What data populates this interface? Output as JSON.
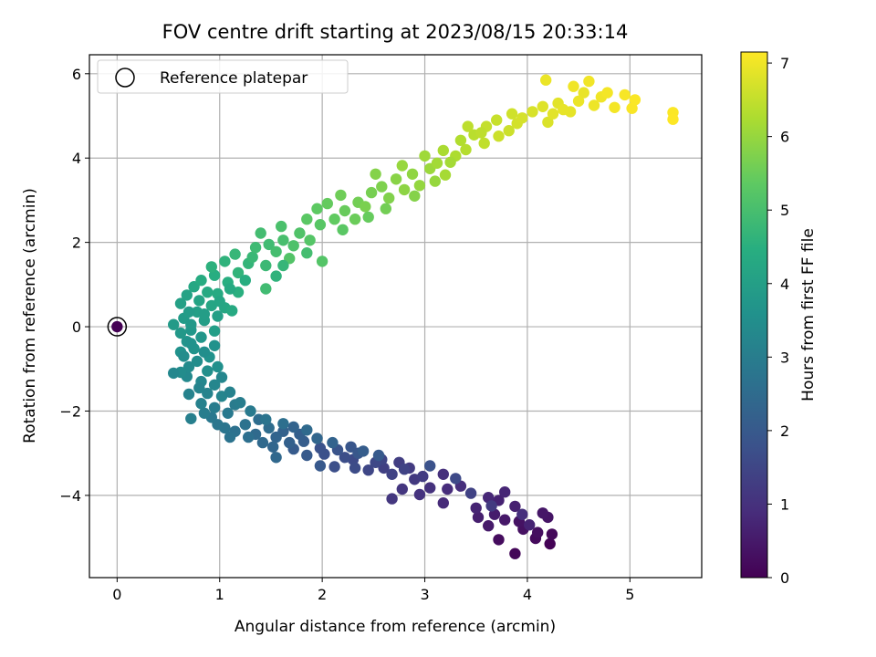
{
  "chart_data": {
    "type": "scatter",
    "title": "FOV centre drift starting at 2023/08/15 20:33:14",
    "xlabel": "Angular distance from reference (arcmin)",
    "ylabel": "Rotation from reference (arcmin)",
    "xlim": [
      -0.27,
      5.7
    ],
    "ylim": [
      -5.95,
      6.45
    ],
    "xticks": [
      0,
      1,
      2,
      3,
      4,
      5
    ],
    "yticks": [
      -4,
      -2,
      0,
      2,
      4,
      6
    ],
    "grid": true,
    "colormap": "viridis",
    "colorbar": {
      "label": "Hours from first FF file",
      "range": [
        0,
        7.15
      ],
      "ticks": [
        0,
        1,
        2,
        3,
        4,
        5,
        6,
        7
      ]
    },
    "legend": {
      "placement": "top-left",
      "entries": [
        "Reference platepar"
      ]
    },
    "reference_point": {
      "x": 0,
      "y": 0,
      "c": 0
    },
    "points": [
      [
        4.22,
        -5.15,
        0.05
      ],
      [
        3.88,
        -5.38,
        0.1
      ],
      [
        4.24,
        -4.92,
        0.14
      ],
      [
        4.08,
        -5.02,
        0.18
      ],
      [
        3.72,
        -5.05,
        0.22
      ],
      [
        4.1,
        -4.88,
        0.26
      ],
      [
        3.96,
        -4.8,
        0.3
      ],
      [
        3.92,
        -4.62,
        0.35
      ],
      [
        4.2,
        -4.52,
        0.39
      ],
      [
        4.15,
        -4.42,
        0.43
      ],
      [
        3.78,
        -4.58,
        0.47
      ],
      [
        3.62,
        -4.72,
        0.51
      ],
      [
        3.68,
        -4.45,
        0.55
      ],
      [
        3.52,
        -4.52,
        0.6
      ],
      [
        3.88,
        -4.26,
        0.64
      ],
      [
        3.72,
        -4.12,
        0.68
      ],
      [
        3.5,
        -4.3,
        0.72
      ],
      [
        3.78,
        -3.92,
        0.76
      ],
      [
        3.62,
        -4.05,
        0.8
      ],
      [
        3.18,
        -4.18,
        0.85
      ],
      [
        3.22,
        -3.85,
        0.89
      ],
      [
        3.35,
        -3.78,
        0.93
      ],
      [
        3.18,
        -3.5,
        0.97
      ],
      [
        3.05,
        -3.82,
        1.01
      ],
      [
        2.95,
        -3.98,
        1.05
      ],
      [
        2.78,
        -3.85,
        1.1
      ],
      [
        2.68,
        -4.08,
        1.14
      ],
      [
        2.9,
        -3.62,
        1.18
      ],
      [
        2.85,
        -3.35,
        1.22
      ],
      [
        2.98,
        -3.55,
        1.26
      ],
      [
        2.75,
        -3.22,
        1.3
      ],
      [
        2.6,
        -3.35,
        1.35
      ],
      [
        2.68,
        -3.5,
        1.39
      ],
      [
        2.8,
        -3.38,
        1.43
      ],
      [
        2.58,
        -3.15,
        1.47
      ],
      [
        2.45,
        -3.4,
        1.51
      ],
      [
        2.52,
        -3.22,
        1.55
      ],
      [
        2.3,
        -3.15,
        1.6
      ],
      [
        2.32,
        -3.35,
        1.64
      ],
      [
        2.22,
        -3.1,
        1.68
      ],
      [
        2.12,
        -3.32,
        1.72
      ],
      [
        2.02,
        -3.02,
        1.76
      ],
      [
        1.98,
        -2.88,
        1.8
      ],
      [
        2.15,
        -2.92,
        1.85
      ],
      [
        2.28,
        -2.85,
        1.89
      ],
      [
        2.35,
        -3.0,
        1.93
      ],
      [
        1.98,
        -3.3,
        1.97
      ],
      [
        1.85,
        -3.05,
        2.01
      ],
      [
        1.72,
        -2.9,
        2.05
      ],
      [
        1.82,
        -2.72,
        2.1
      ],
      [
        1.78,
        -2.55,
        2.14
      ],
      [
        1.68,
        -2.75,
        2.18
      ],
      [
        1.62,
        -2.48,
        2.22
      ],
      [
        1.72,
        -2.38,
        2.26
      ],
      [
        1.55,
        -2.62,
        2.3
      ],
      [
        1.52,
        -2.85,
        2.35
      ],
      [
        1.55,
        -3.1,
        2.39
      ],
      [
        1.42,
        -2.75,
        2.43
      ],
      [
        1.35,
        -2.55,
        2.47
      ],
      [
        1.48,
        -2.4,
        2.51
      ],
      [
        1.38,
        -2.2,
        2.55
      ],
      [
        1.28,
        -2.62,
        2.6
      ],
      [
        1.15,
        -2.48,
        2.64
      ],
      [
        1.25,
        -2.32,
        2.68
      ],
      [
        1.1,
        -2.62,
        2.72
      ],
      [
        1.05,
        -2.4,
        2.76
      ],
      [
        0.98,
        -2.32,
        2.8
      ],
      [
        0.92,
        -2.15,
        2.85
      ],
      [
        1.08,
        -2.05,
        2.89
      ],
      [
        1.15,
        -1.85,
        2.93
      ],
      [
        0.95,
        -1.92,
        2.97
      ],
      [
        0.85,
        -2.05,
        3.01
      ],
      [
        0.72,
        -2.18,
        3.05
      ],
      [
        0.82,
        -1.82,
        3.1
      ],
      [
        0.7,
        -1.6,
        3.14
      ],
      [
        0.88,
        -1.58,
        3.18
      ],
      [
        1.02,
        -1.65,
        3.22
      ],
      [
        0.95,
        -1.38,
        3.26
      ],
      [
        0.82,
        -1.3,
        3.3
      ],
      [
        0.68,
        -1.18,
        3.35
      ],
      [
        0.7,
        -0.95,
        3.39
      ],
      [
        0.62,
        -1.08,
        3.43
      ],
      [
        0.78,
        -0.82,
        3.47
      ],
      [
        0.88,
        -1.05,
        3.51
      ],
      [
        0.98,
        -0.95,
        3.55
      ],
      [
        0.9,
        -0.72,
        3.6
      ],
      [
        0.75,
        -0.52,
        3.64
      ],
      [
        0.68,
        -0.35,
        3.68
      ],
      [
        0.82,
        -0.25,
        3.72
      ],
      [
        0.72,
        -0.08,
        3.76
      ],
      [
        0.62,
        -0.15,
        3.8
      ],
      [
        0.55,
        0.05,
        3.85
      ],
      [
        0.65,
        0.2,
        3.89
      ],
      [
        0.85,
        0.15,
        3.93
      ],
      [
        0.95,
        -0.1,
        3.97
      ],
      [
        0.78,
        0.35,
        4.01
      ],
      [
        0.62,
        0.55,
        4.05
      ],
      [
        0.68,
        0.75,
        4.1
      ],
      [
        0.8,
        0.62,
        4.14
      ],
      [
        0.92,
        0.5,
        4.18
      ],
      [
        1.05,
        0.45,
        4.22
      ],
      [
        0.75,
        0.95,
        4.26
      ],
      [
        0.88,
        0.82,
        4.3
      ],
      [
        0.98,
        0.78,
        4.35
      ],
      [
        0.82,
        1.1,
        4.39
      ],
      [
        0.95,
        1.22,
        4.43
      ],
      [
        1.08,
        1.05,
        4.47
      ],
      [
        1.18,
        0.82,
        4.51
      ],
      [
        0.92,
        1.42,
        4.55
      ],
      [
        1.05,
        1.55,
        4.6
      ],
      [
        1.18,
        1.28,
        4.64
      ],
      [
        1.28,
        1.5,
        4.68
      ],
      [
        1.15,
        1.72,
        4.72
      ],
      [
        1.32,
        1.65,
        4.76
      ],
      [
        1.45,
        1.45,
        4.8
      ],
      [
        1.35,
        1.88,
        4.85
      ],
      [
        1.48,
        1.95,
        4.89
      ],
      [
        1.4,
        2.22,
        4.93
      ],
      [
        1.55,
        1.78,
        4.97
      ],
      [
        1.62,
        2.05,
        5.01
      ],
      [
        1.6,
        2.38,
        5.05
      ],
      [
        1.72,
        1.92,
        5.1
      ],
      [
        1.78,
        2.22,
        5.14
      ],
      [
        1.68,
        1.62,
        5.18
      ],
      [
        1.88,
        2.05,
        5.22
      ],
      [
        1.98,
        2.42,
        5.26
      ],
      [
        1.85,
        2.55,
        5.3
      ],
      [
        1.95,
        2.8,
        5.35
      ],
      [
        2.12,
        2.55,
        5.39
      ],
      [
        2.05,
        2.92,
        5.43
      ],
      [
        2.22,
        2.75,
        5.47
      ],
      [
        2.32,
        2.55,
        5.51
      ],
      [
        2.18,
        3.12,
        5.55
      ],
      [
        2.35,
        2.95,
        5.6
      ],
      [
        2.48,
        3.18,
        5.64
      ],
      [
        2.42,
        2.85,
        5.68
      ],
      [
        2.58,
        3.32,
        5.72
      ],
      [
        2.65,
        3.05,
        5.76
      ],
      [
        2.52,
        3.62,
        5.8
      ],
      [
        2.72,
        3.5,
        5.85
      ],
      [
        2.8,
        3.25,
        5.89
      ],
      [
        2.88,
        3.62,
        5.93
      ],
      [
        2.95,
        3.35,
        5.97
      ],
      [
        2.78,
        3.82,
        6.01
      ],
      [
        3.05,
        3.75,
        6.05
      ],
      [
        3.0,
        4.05,
        6.1
      ],
      [
        3.12,
        3.88,
        6.14
      ],
      [
        3.2,
        3.6,
        6.18
      ],
      [
        3.18,
        4.18,
        6.22
      ],
      [
        3.3,
        4.05,
        6.26
      ],
      [
        3.35,
        4.42,
        6.3
      ],
      [
        3.4,
        4.2,
        6.35
      ],
      [
        3.48,
        4.55,
        6.39
      ],
      [
        3.42,
        4.75,
        6.43
      ],
      [
        3.58,
        4.35,
        6.47
      ],
      [
        3.6,
        4.75,
        6.51
      ],
      [
        3.7,
        4.9,
        6.55
      ],
      [
        3.72,
        4.52,
        6.6
      ],
      [
        3.85,
        5.05,
        6.64
      ],
      [
        3.9,
        4.82,
        6.68
      ],
      [
        4.05,
        5.1,
        6.72
      ],
      [
        4.2,
        4.85,
        6.76
      ],
      [
        4.15,
        5.22,
        6.8
      ],
      [
        4.3,
        5.3,
        6.85
      ],
      [
        4.42,
        5.1,
        6.89
      ],
      [
        4.55,
        5.55,
        6.93
      ],
      [
        4.65,
        5.25,
        6.97
      ],
      [
        4.72,
        5.45,
        7.01
      ],
      [
        4.85,
        5.2,
        7.05
      ],
      [
        4.95,
        5.5,
        7.08
      ],
      [
        5.02,
        5.18,
        7.1
      ],
      [
        5.05,
        5.38,
        7.12
      ],
      [
        5.42,
        5.08,
        7.13
      ],
      [
        5.42,
        4.92,
        7.15
      ],
      [
        4.45,
        5.7,
        7.0
      ],
      [
        4.6,
        5.82,
        7.02
      ],
      [
        4.18,
        5.85,
        6.95
      ],
      [
        4.35,
        5.15,
        6.9
      ],
      [
        2.0,
        1.55,
        5.2
      ],
      [
        1.45,
        0.9,
        4.9
      ],
      [
        1.12,
        0.38,
        4.3
      ],
      [
        0.7,
        0.35,
        3.9
      ],
      [
        0.62,
        -0.6,
        3.6
      ],
      [
        0.72,
        -0.4,
        3.6
      ],
      [
        0.65,
        -0.7,
        3.45
      ],
      [
        0.55,
        -1.1,
        3.3
      ],
      [
        0.8,
        -1.45,
        3.2
      ],
      [
        0.85,
        -0.6,
        3.5
      ],
      [
        0.95,
        -0.45,
        3.6
      ],
      [
        0.72,
        0.05,
        3.8
      ],
      [
        0.85,
        0.3,
        3.95
      ],
      [
        0.98,
        0.25,
        4.0
      ],
      [
        1.0,
        0.6,
        4.2
      ],
      [
        1.1,
        0.9,
        4.3
      ],
      [
        1.25,
        1.1,
        4.45
      ],
      [
        1.55,
        1.2,
        4.6
      ],
      [
        1.62,
        1.45,
        4.7
      ],
      [
        1.85,
        1.75,
        4.95
      ],
      [
        2.2,
        2.3,
        5.3
      ],
      [
        2.45,
        2.6,
        5.45
      ],
      [
        2.62,
        2.8,
        5.6
      ],
      [
        2.9,
        3.1,
        5.8
      ],
      [
        3.1,
        3.45,
        6.0
      ],
      [
        3.25,
        3.9,
        6.15
      ],
      [
        3.55,
        4.6,
        6.45
      ],
      [
        3.82,
        4.65,
        6.6
      ],
      [
        3.95,
        4.95,
        6.7
      ],
      [
        4.25,
        5.05,
        6.85
      ],
      [
        4.5,
        5.35,
        6.95
      ],
      [
        4.78,
        5.55,
        7.05
      ],
      [
        1.02,
        -1.2,
        3.25
      ],
      [
        1.1,
        -1.55,
        3.15
      ],
      [
        1.2,
        -1.8,
        3.0
      ],
      [
        1.3,
        -2.0,
        2.9
      ],
      [
        1.45,
        -2.2,
        2.75
      ],
      [
        1.62,
        -2.3,
        2.6
      ],
      [
        1.85,
        -2.45,
        2.45
      ],
      [
        1.95,
        -2.65,
        2.35
      ],
      [
        2.1,
        -2.75,
        2.25
      ],
      [
        2.4,
        -2.95,
        2.1
      ],
      [
        2.55,
        -3.05,
        2.0
      ],
      [
        3.05,
        -3.3,
        1.8
      ],
      [
        3.3,
        -3.6,
        1.6
      ],
      [
        3.45,
        -3.95,
        1.4
      ],
      [
        3.65,
        -4.25,
        1.2
      ],
      [
        3.95,
        -4.45,
        0.95
      ],
      [
        4.02,
        -4.7,
        0.7
      ]
    ]
  }
}
